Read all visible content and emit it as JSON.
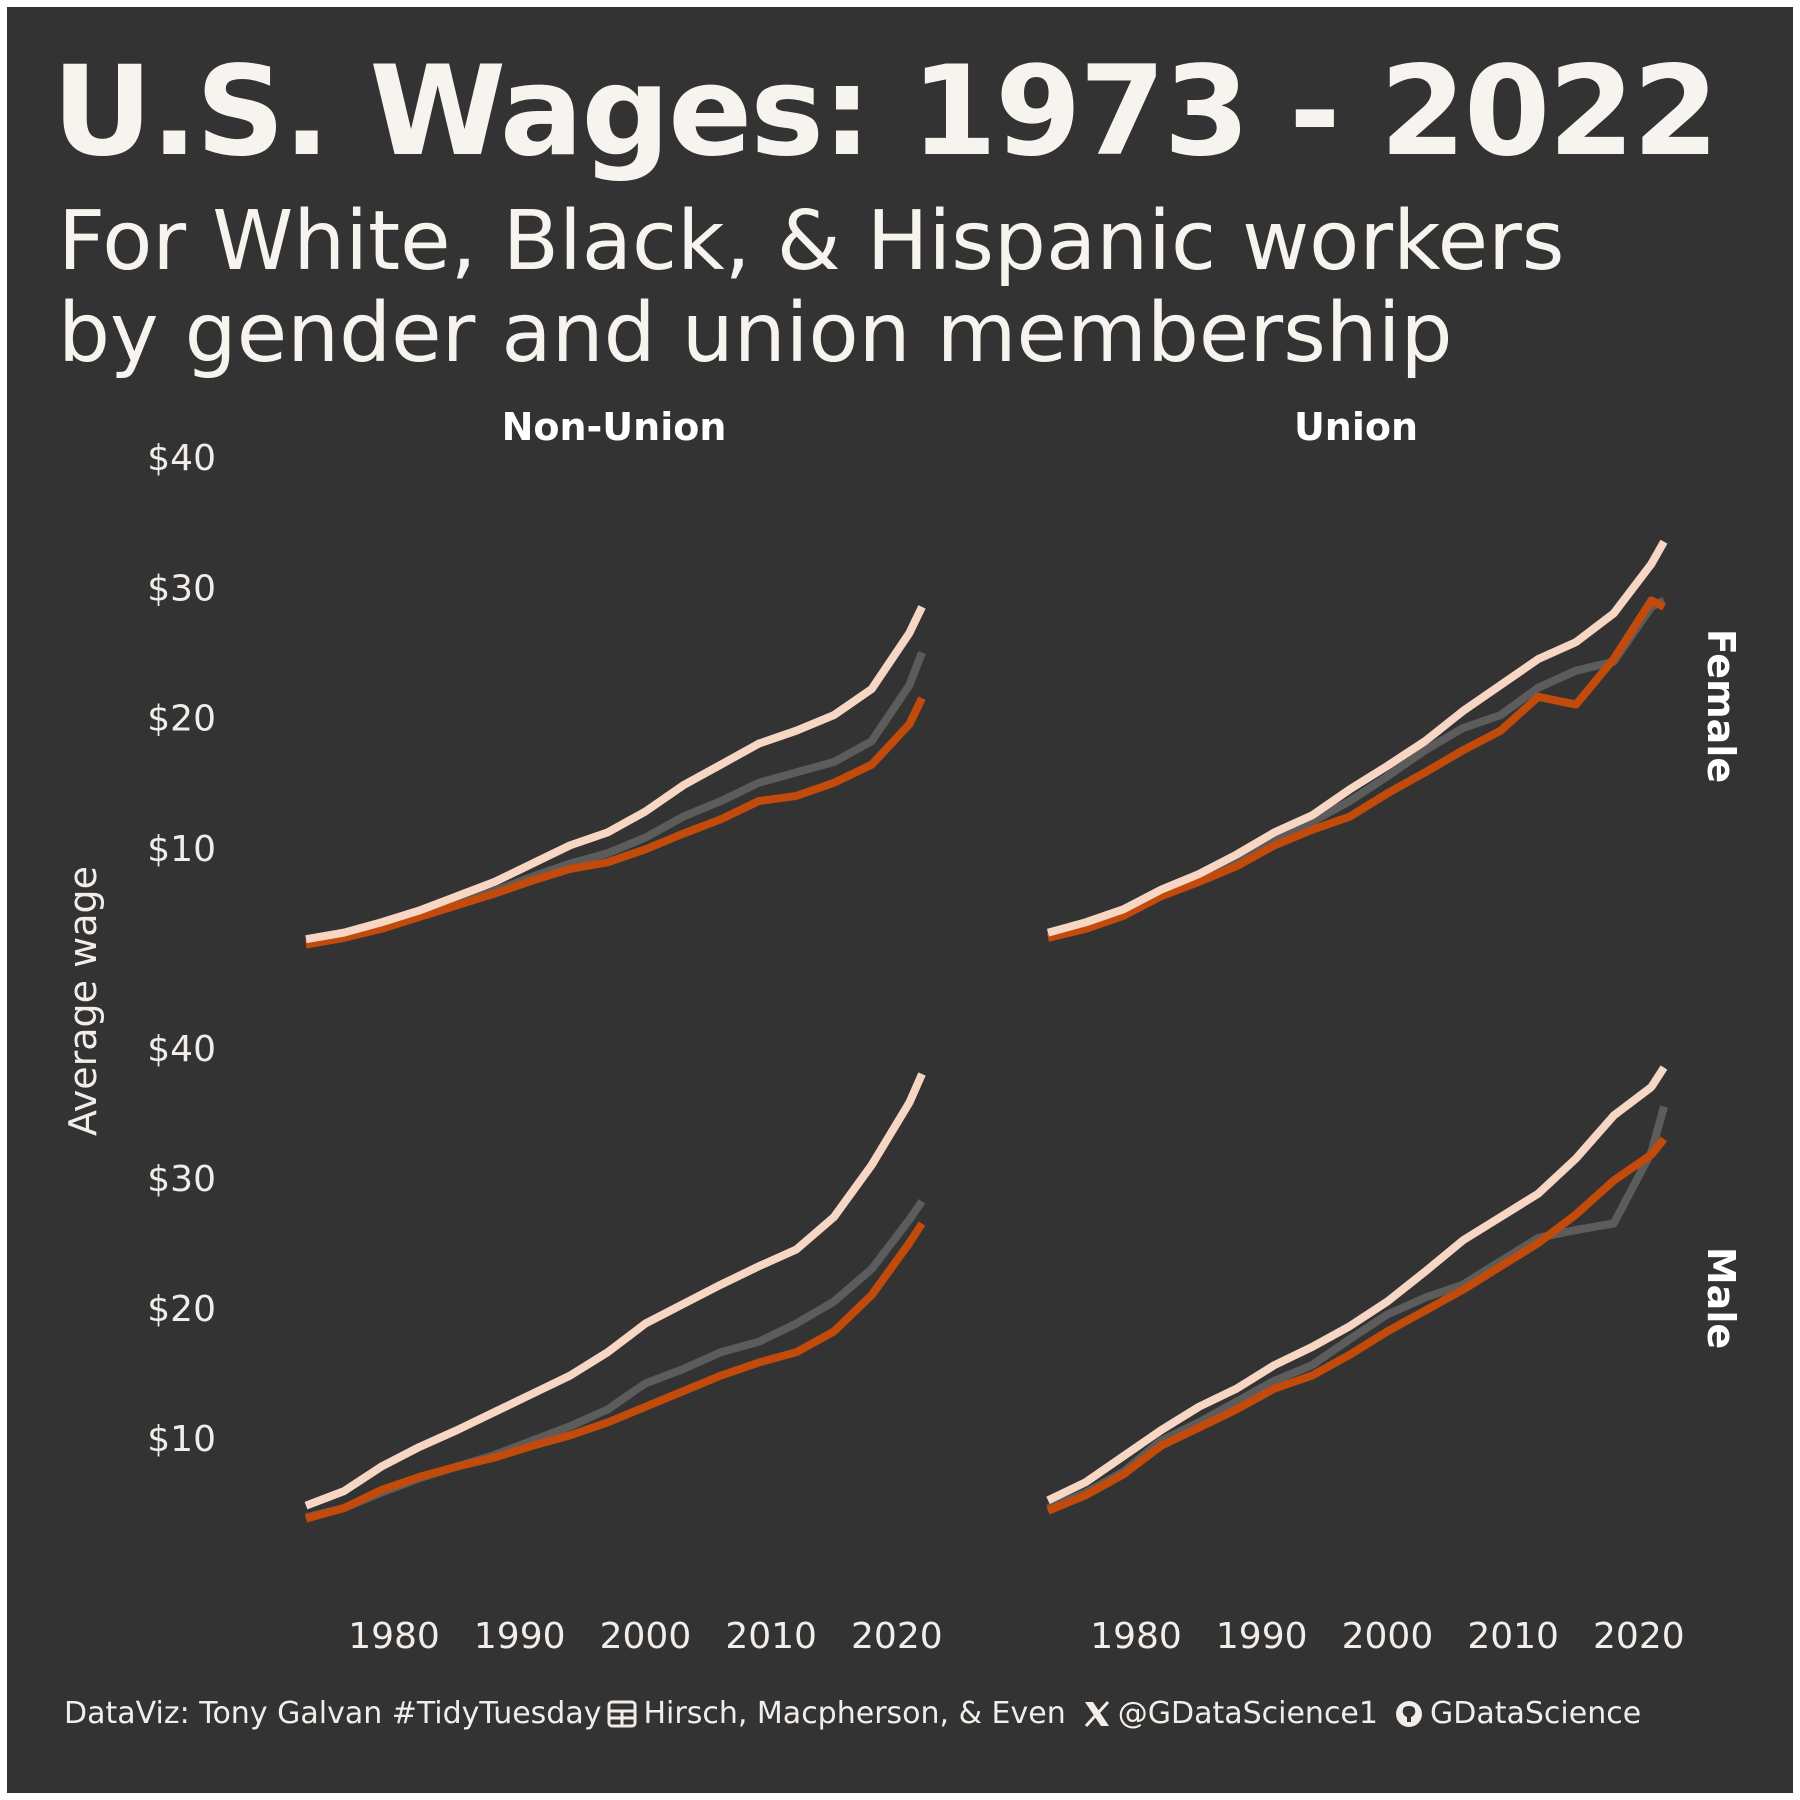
{
  "title": "U.S. Wages: 1973 - 2022",
  "subtitle_line1": "For White, Black, & Hispanic workers",
  "subtitle_line2": "by gender and union membership",
  "caption": {
    "part1": "DataViz: Tony Galvan #TidyTuesday",
    "table_icon": "table-icon",
    "part2": "Hirsch, Macpherson, & Even",
    "x_icon": "x-logo-icon",
    "part3": "@GDataScience1",
    "github_icon": "github-icon",
    "part4": "GDataScience"
  },
  "colors": {
    "background": "#333333",
    "text": "#f2ede8",
    "white_series": "#f7d6c4",
    "black_series": "#5c5c5c",
    "hispanic_series": "#c24a0a"
  },
  "chart_data": {
    "type": "line",
    "facet_columns": [
      "Non-Union",
      "Union"
    ],
    "facet_rows": [
      "Female",
      "Male"
    ],
    "ylabel": "Average wage",
    "y_ticks": [
      10,
      20,
      30,
      40
    ],
    "y_tick_labels": [
      "$10",
      "$20",
      "$30",
      "$40"
    ],
    "x_ticks": [
      1980,
      1990,
      2000,
      2010,
      2020
    ],
    "x_tick_labels": [
      "1980",
      "1990",
      "2000",
      "2010",
      "2020"
    ],
    "xlim": [
      1973,
      2022
    ],
    "ylim": [
      0,
      40
    ],
    "grid": false,
    "legend": "none",
    "panels": [
      {
        "column": "Non-Union",
        "row": "Female",
        "series": [
          {
            "color_key": "white_series",
            "x": [
              1973,
              1976,
              1979,
              1982,
              1985,
              1988,
              1991,
              1994,
              1997,
              2000,
              2003,
              2006,
              2009,
              2012,
              2015,
              2018,
              2021,
              2022
            ],
            "y": [
              3.0,
              3.5,
              4.3,
              5.2,
              6.3,
              7.4,
              8.8,
              10.2,
              11.2,
              12.8,
              14.8,
              16.4,
              18.0,
              19.0,
              20.2,
              22.2,
              26.5,
              28.5
            ]
          },
          {
            "color_key": "black_series",
            "x": [
              1973,
              1976,
              1979,
              1982,
              1985,
              1988,
              1991,
              1994,
              1997,
              2000,
              2003,
              2006,
              2009,
              2012,
              2015,
              2018,
              2021,
              2022
            ],
            "y": [
              2.6,
              3.1,
              3.9,
              4.8,
              5.8,
              6.7,
              7.8,
              8.8,
              9.6,
              10.8,
              12.4,
              13.6,
              15.0,
              15.8,
              16.6,
              18.2,
              22.5,
              25.0
            ]
          },
          {
            "color_key": "hispanic_series",
            "x": [
              1973,
              1976,
              1979,
              1982,
              1985,
              1988,
              1991,
              1994,
              1997,
              2000,
              2003,
              2006,
              2009,
              2012,
              2015,
              2018,
              2021,
              2022
            ],
            "y": [
              2.6,
              3.1,
              3.8,
              4.7,
              5.6,
              6.5,
              7.5,
              8.4,
              8.9,
              9.9,
              11.1,
              12.2,
              13.6,
              14.0,
              15.0,
              16.4,
              19.5,
              21.5
            ]
          }
        ]
      },
      {
        "column": "Union",
        "row": "Female",
        "series": [
          {
            "color_key": "white_series",
            "x": [
              1973,
              1976,
              1979,
              1982,
              1985,
              1988,
              1991,
              1994,
              1997,
              2000,
              2003,
              2006,
              2009,
              2012,
              2015,
              2018,
              2021,
              2022
            ],
            "y": [
              3.5,
              4.3,
              5.3,
              6.8,
              8.0,
              9.5,
              11.2,
              12.5,
              14.5,
              16.3,
              18.2,
              20.5,
              22.5,
              24.5,
              25.8,
              28.0,
              31.8,
              33.5
            ]
          },
          {
            "color_key": "black_series",
            "x": [
              1973,
              1976,
              1979,
              1982,
              1985,
              1988,
              1991,
              1994,
              1997,
              2000,
              2003,
              2006,
              2009,
              2012,
              2015,
              2018,
              2021,
              2022
            ],
            "y": [
              3.3,
              4.0,
              5.0,
              6.5,
              7.6,
              9.0,
              10.8,
              12.0,
              13.6,
              15.5,
              17.5,
              19.2,
              20.2,
              22.3,
              23.6,
              24.3,
              28.5,
              29.0
            ]
          },
          {
            "color_key": "hispanic_series",
            "x": [
              1973,
              1976,
              1979,
              1982,
              1985,
              1988,
              1991,
              1994,
              1997,
              2000,
              2003,
              2006,
              2009,
              2012,
              2015,
              2018,
              2021,
              2022
            ],
            "y": [
              3.1,
              3.8,
              4.8,
              6.3,
              7.4,
              8.6,
              10.2,
              11.4,
              12.4,
              14.2,
              15.8,
              17.5,
              19.0,
              21.6,
              21.0,
              24.5,
              29.0,
              28.5
            ]
          }
        ]
      },
      {
        "column": "Non-Union",
        "row": "Male",
        "series": [
          {
            "color_key": "white_series",
            "x": [
              1973,
              1976,
              1979,
              1982,
              1985,
              1988,
              1991,
              1994,
              1997,
              2000,
              2003,
              2006,
              2009,
              2012,
              2015,
              2018,
              2021,
              2022
            ],
            "y": [
              4.8,
              5.9,
              7.8,
              9.3,
              10.6,
              12.0,
              13.4,
              14.8,
              16.6,
              18.8,
              20.3,
              21.8,
              23.2,
              24.5,
              27.0,
              31.0,
              35.8,
              38.0
            ]
          },
          {
            "color_key": "black_series",
            "x": [
              1973,
              1976,
              1979,
              1982,
              1985,
              1988,
              1991,
              1994,
              1997,
              2000,
              2003,
              2006,
              2009,
              2012,
              2015,
              2018,
              2021,
              2022
            ],
            "y": [
              3.9,
              4.6,
              5.8,
              6.9,
              7.8,
              8.7,
              9.8,
              10.9,
              12.2,
              14.2,
              15.3,
              16.6,
              17.4,
              18.8,
              20.5,
              23.0,
              26.8,
              28.2
            ]
          },
          {
            "color_key": "hispanic_series",
            "x": [
              1973,
              1976,
              1979,
              1982,
              1985,
              1988,
              1991,
              1994,
              1997,
              2000,
              2003,
              2006,
              2009,
              2012,
              2015,
              2018,
              2021,
              2022
            ],
            "y": [
              3.8,
              4.6,
              6.0,
              7.0,
              7.8,
              8.5,
              9.4,
              10.2,
              11.2,
              12.4,
              13.6,
              14.8,
              15.8,
              16.6,
              18.2,
              21.0,
              25.0,
              26.5
            ]
          }
        ]
      },
      {
        "column": "Union",
        "row": "Male",
        "series": [
          {
            "color_key": "white_series",
            "x": [
              1973,
              1976,
              1979,
              1982,
              1985,
              1988,
              1991,
              1994,
              1997,
              2000,
              2003,
              2006,
              2009,
              2012,
              2015,
              2018,
              2021,
              2022
            ],
            "y": [
              5.2,
              6.6,
              8.6,
              10.6,
              12.4,
              13.8,
              15.6,
              17.0,
              18.6,
              20.5,
              22.8,
              25.2,
              27.0,
              28.8,
              31.5,
              34.8,
              37.0,
              38.5
            ]
          },
          {
            "color_key": "black_series",
            "x": [
              1973,
              1976,
              1979,
              1982,
              1985,
              1988,
              1991,
              1994,
              1997,
              2000,
              2003,
              2006,
              2009,
              2012,
              2015,
              2018,
              2021,
              2022
            ],
            "y": [
              4.6,
              5.8,
              7.4,
              9.8,
              11.2,
              12.8,
              14.4,
              15.6,
              17.6,
              19.5,
              20.8,
              21.8,
              23.6,
              25.4,
              26.0,
              26.5,
              32.0,
              35.5
            ]
          },
          {
            "color_key": "hispanic_series",
            "x": [
              1973,
              1976,
              1979,
              1982,
              1985,
              1988,
              1991,
              1994,
              1997,
              2000,
              2003,
              2006,
              2009,
              2012,
              2015,
              2018,
              2021,
              2022
            ],
            "y": [
              4.4,
              5.6,
              7.2,
              9.4,
              10.8,
              12.2,
              13.8,
              14.8,
              16.4,
              18.2,
              19.8,
              21.4,
              23.2,
              25.0,
              27.2,
              29.8,
              31.8,
              33.0
            ]
          }
        ]
      }
    ]
  }
}
